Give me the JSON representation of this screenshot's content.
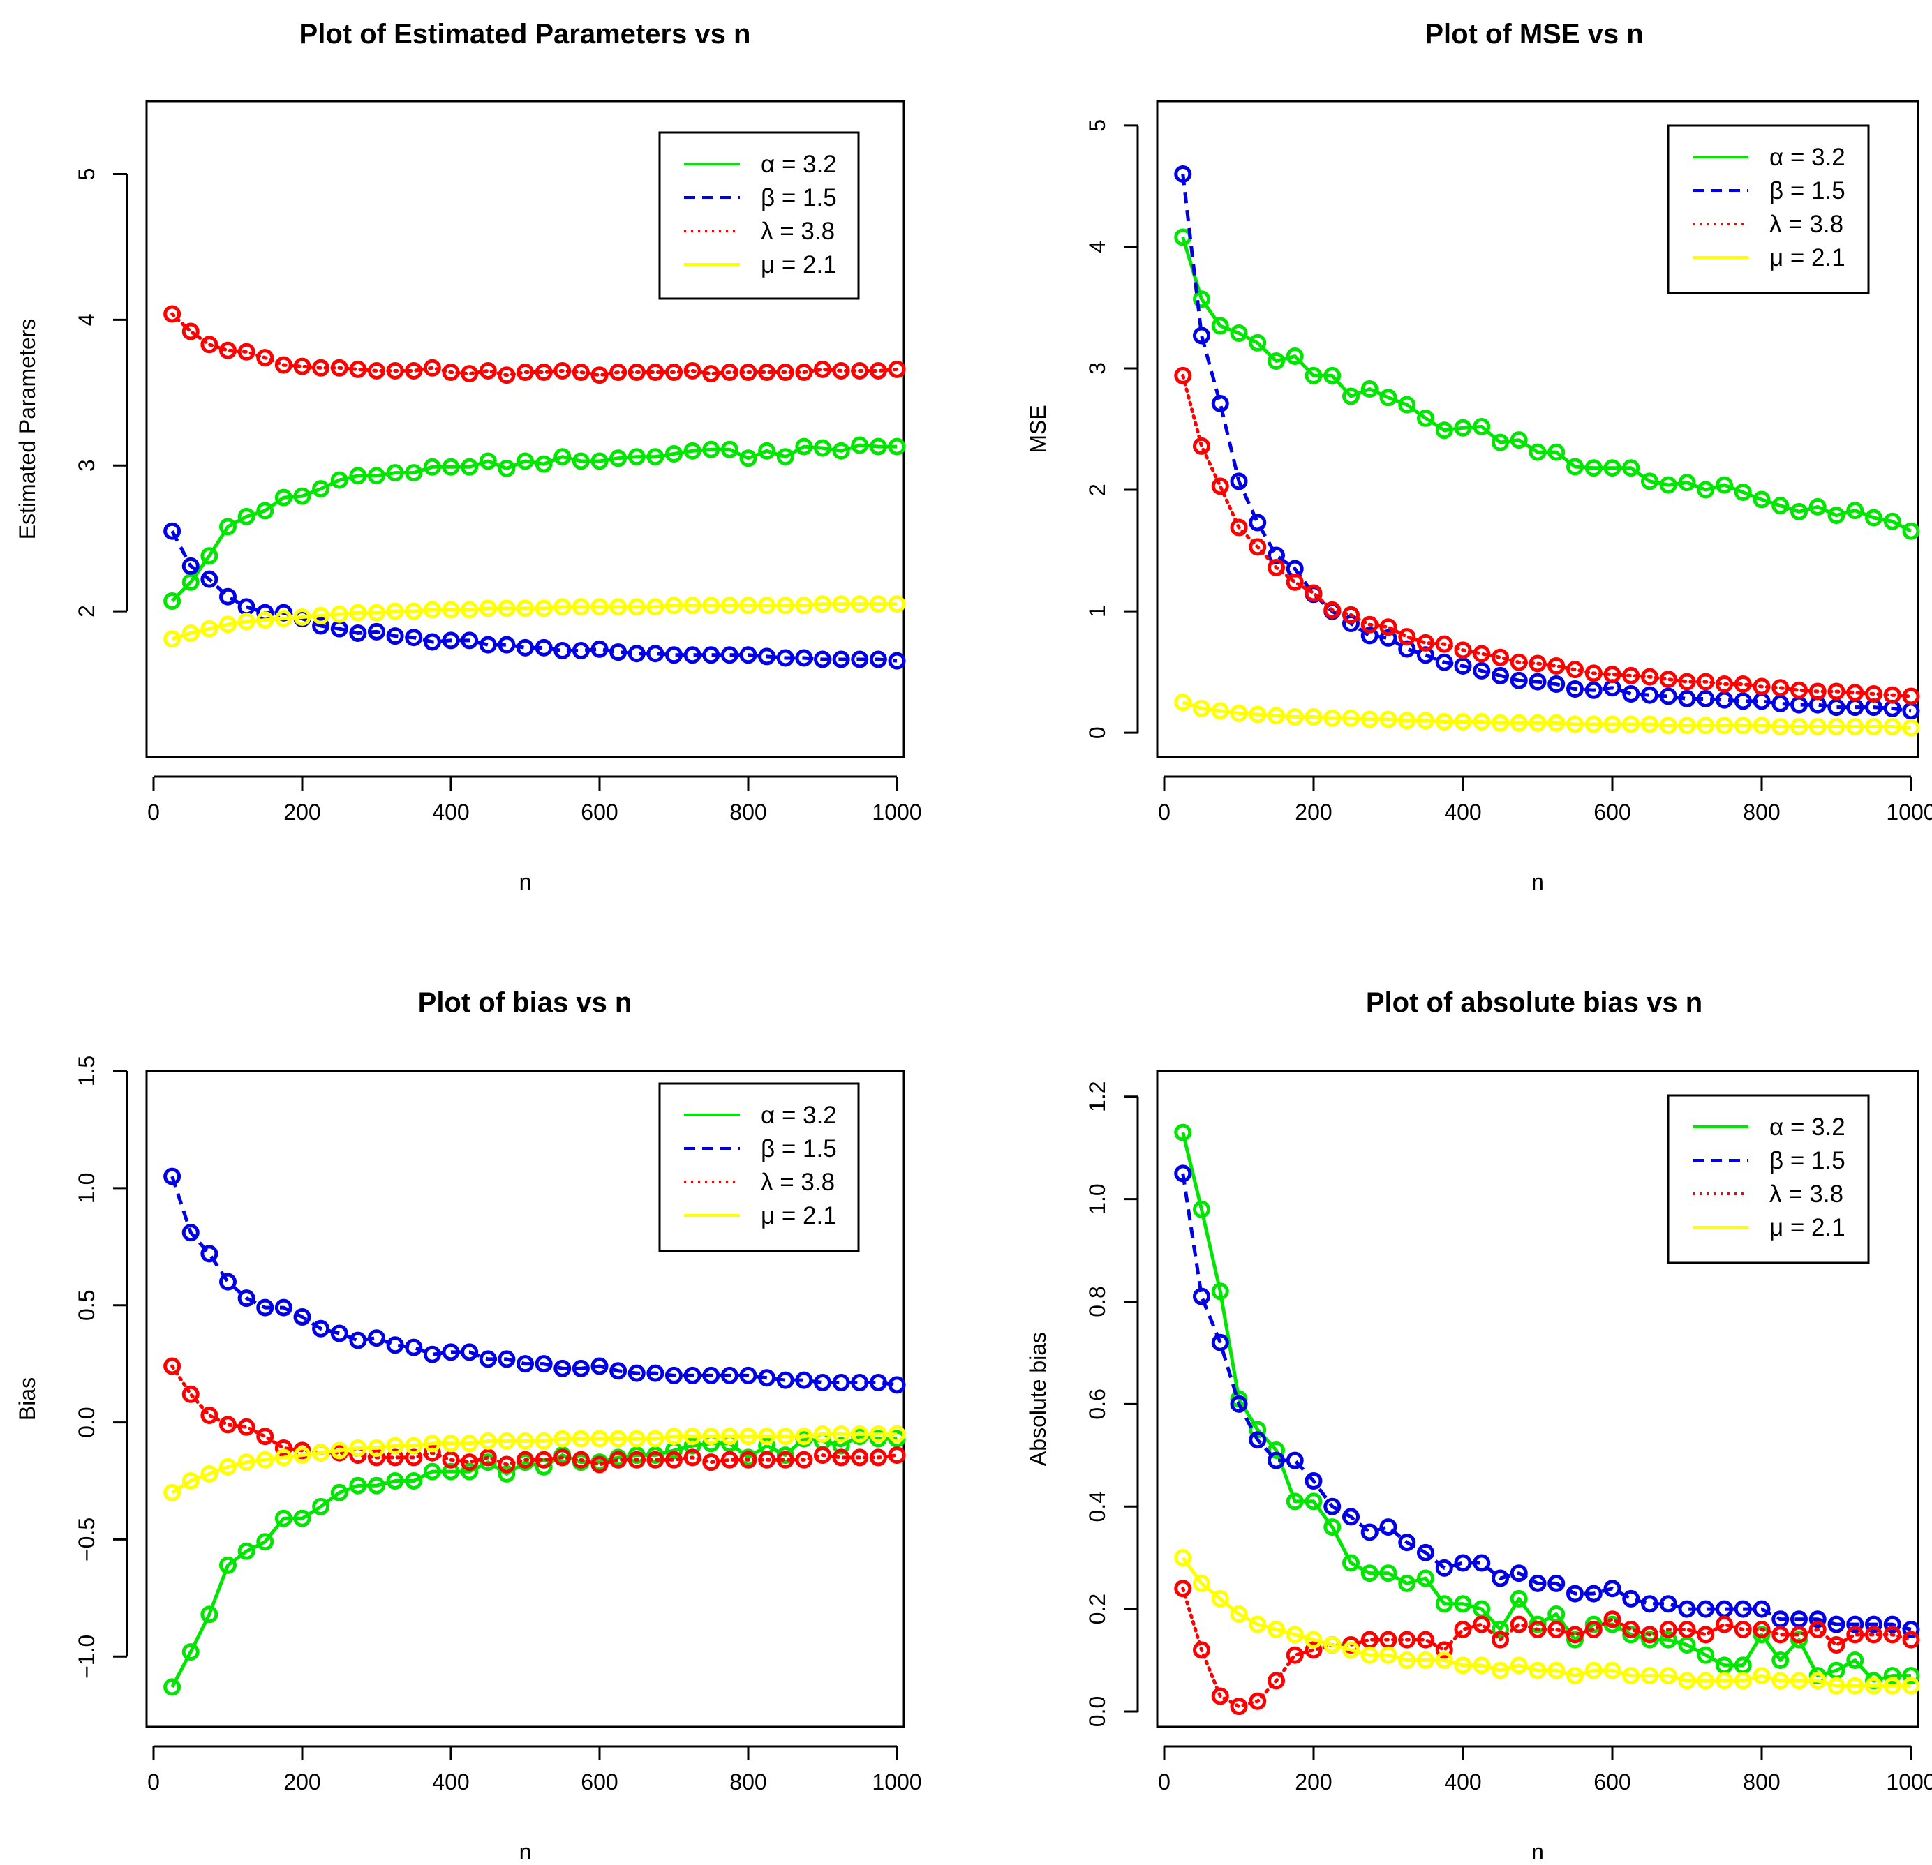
{
  "chart_data": [
    {
      "type": "line",
      "title": "Plot of Estimated Parameters vs n",
      "xlabel": "n",
      "ylabel": "Estimated Parameters",
      "xlim": [
        0,
        1000
      ],
      "ylim": [
        1,
        5.5
      ],
      "xticks": [
        0,
        200,
        400,
        600,
        800,
        1000
      ],
      "yticks": [
        2,
        3,
        4,
        5
      ],
      "x": [
        25,
        50,
        75,
        100,
        125,
        150,
        175,
        200,
        225,
        250,
        275,
        300,
        325,
        350,
        375,
        400,
        425,
        450,
        475,
        500,
        525,
        550,
        575,
        600,
        625,
        650,
        675,
        700,
        725,
        750,
        775,
        800,
        825,
        850,
        875,
        900,
        925,
        950,
        975,
        1000
      ],
      "legend_position": "top-right",
      "series": [
        {
          "name": "α = 3.2",
          "color": "#00e600",
          "dash": "solid",
          "values": [
            2.07,
            2.2,
            2.38,
            2.58,
            2.65,
            2.69,
            2.78,
            2.79,
            2.84,
            2.9,
            2.93,
            2.93,
            2.95,
            2.95,
            2.99,
            2.99,
            2.99,
            3.03,
            2.98,
            3.03,
            3.01,
            3.06,
            3.03,
            3.03,
            3.05,
            3.06,
            3.06,
            3.08,
            3.1,
            3.11,
            3.11,
            3.05,
            3.1,
            3.06,
            3.13,
            3.12,
            3.1,
            3.14,
            3.13,
            3.13
          ]
        },
        {
          "name": "β = 1.5",
          "color": "#0000e6",
          "dash": "dashed",
          "values": [
            2.55,
            2.31,
            2.22,
            2.1,
            2.03,
            1.99,
            1.99,
            1.95,
            1.9,
            1.88,
            1.85,
            1.86,
            1.83,
            1.82,
            1.79,
            1.8,
            1.8,
            1.77,
            1.77,
            1.75,
            1.75,
            1.73,
            1.73,
            1.74,
            1.72,
            1.71,
            1.71,
            1.7,
            1.7,
            1.7,
            1.7,
            1.7,
            1.69,
            1.68,
            1.68,
            1.67,
            1.67,
            1.67,
            1.67,
            1.66
          ]
        },
        {
          "name": "λ = 3.8",
          "color": "#ff0000",
          "dash": "dotted",
          "values": [
            4.04,
            3.92,
            3.83,
            3.79,
            3.78,
            3.74,
            3.69,
            3.68,
            3.67,
            3.67,
            3.66,
            3.65,
            3.65,
            3.65,
            3.67,
            3.64,
            3.63,
            3.65,
            3.62,
            3.64,
            3.64,
            3.65,
            3.64,
            3.62,
            3.64,
            3.64,
            3.64,
            3.64,
            3.65,
            3.63,
            3.64,
            3.64,
            3.64,
            3.64,
            3.64,
            3.66,
            3.65,
            3.65,
            3.65,
            3.66
          ]
        },
        {
          "name": "μ = 2.1",
          "color": "#ffff00",
          "dash": "solid",
          "values": [
            1.81,
            1.85,
            1.88,
            1.91,
            1.93,
            1.94,
            1.95,
            1.96,
            1.97,
            1.98,
            1.99,
            1.99,
            2.0,
            2.0,
            2.01,
            2.01,
            2.01,
            2.02,
            2.02,
            2.02,
            2.02,
            2.03,
            2.03,
            2.03,
            2.03,
            2.03,
            2.03,
            2.04,
            2.04,
            2.04,
            2.04,
            2.04,
            2.04,
            2.04,
            2.04,
            2.05,
            2.05,
            2.05,
            2.05,
            2.05
          ]
        }
      ]
    },
    {
      "type": "line",
      "title": "Plot of MSE vs n",
      "xlabel": "n",
      "ylabel": "MSE",
      "xlim": [
        0,
        1000
      ],
      "ylim": [
        -0.2,
        5.2
      ],
      "xticks": [
        0,
        200,
        400,
        600,
        800,
        1000
      ],
      "yticks": [
        0,
        1,
        2,
        3,
        4,
        5
      ],
      "x": [
        25,
        50,
        75,
        100,
        125,
        150,
        175,
        200,
        225,
        250,
        275,
        300,
        325,
        350,
        375,
        400,
        425,
        450,
        475,
        500,
        525,
        550,
        575,
        600,
        625,
        650,
        675,
        700,
        725,
        750,
        775,
        800,
        825,
        850,
        875,
        900,
        925,
        950,
        975,
        1000
      ],
      "legend_position": "top-right",
      "series": [
        {
          "name": "α = 3.2",
          "color": "#00e600",
          "dash": "solid",
          "values": [
            4.08,
            3.57,
            3.35,
            3.29,
            3.21,
            3.06,
            3.1,
            2.94,
            2.94,
            2.77,
            2.83,
            2.76,
            2.7,
            2.59,
            2.49,
            2.51,
            2.52,
            2.39,
            2.41,
            2.31,
            2.31,
            2.19,
            2.18,
            2.18,
            2.18,
            2.07,
            2.04,
            2.06,
            2.0,
            2.04,
            1.98,
            1.92,
            1.87,
            1.82,
            1.86,
            1.79,
            1.83,
            1.77,
            1.74,
            1.66
          ]
        },
        {
          "name": "β = 1.5",
          "color": "#0000e6",
          "dash": "dashed",
          "values": [
            4.6,
            3.27,
            2.71,
            2.07,
            1.73,
            1.46,
            1.35,
            1.14,
            1.0,
            0.9,
            0.8,
            0.78,
            0.69,
            0.64,
            0.58,
            0.55,
            0.51,
            0.47,
            0.43,
            0.42,
            0.4,
            0.36,
            0.35,
            0.37,
            0.32,
            0.31,
            0.3,
            0.28,
            0.28,
            0.27,
            0.26,
            0.26,
            0.24,
            0.23,
            0.23,
            0.21,
            0.21,
            0.21,
            0.2,
            0.18
          ]
        },
        {
          "name": "λ = 3.8",
          "color": "#ff0000",
          "dash": "dotted",
          "values": [
            2.94,
            2.36,
            2.03,
            1.69,
            1.53,
            1.36,
            1.24,
            1.15,
            1.01,
            0.97,
            0.89,
            0.87,
            0.79,
            0.74,
            0.73,
            0.68,
            0.65,
            0.62,
            0.58,
            0.57,
            0.55,
            0.52,
            0.49,
            0.48,
            0.47,
            0.46,
            0.44,
            0.42,
            0.42,
            0.4,
            0.4,
            0.38,
            0.37,
            0.35,
            0.34,
            0.34,
            0.33,
            0.32,
            0.31,
            0.3
          ]
        },
        {
          "name": "μ = 2.1",
          "color": "#ffff00",
          "dash": "solid",
          "values": [
            0.25,
            0.2,
            0.18,
            0.16,
            0.15,
            0.14,
            0.13,
            0.13,
            0.12,
            0.12,
            0.11,
            0.11,
            0.1,
            0.1,
            0.09,
            0.09,
            0.09,
            0.08,
            0.08,
            0.08,
            0.08,
            0.07,
            0.07,
            0.07,
            0.07,
            0.07,
            0.06,
            0.06,
            0.06,
            0.06,
            0.06,
            0.06,
            0.05,
            0.05,
            0.05,
            0.05,
            0.05,
            0.05,
            0.05,
            0.04
          ]
        }
      ]
    },
    {
      "type": "line",
      "title": "Plot of bias vs n",
      "xlabel": "n",
      "ylabel": "Bias",
      "xlim": [
        0,
        1000
      ],
      "ylim": [
        -1.3,
        1.5
      ],
      "xticks": [
        0,
        200,
        400,
        600,
        800,
        1000
      ],
      "yticks": [
        -1.0,
        -0.5,
        0.0,
        0.5,
        1.0,
        1.5
      ],
      "ytick_labels": [
        "−1.0",
        "−0.5",
        "0.0",
        "0.5",
        "1.0",
        "1.5"
      ],
      "x": [
        25,
        50,
        75,
        100,
        125,
        150,
        175,
        200,
        225,
        250,
        275,
        300,
        325,
        350,
        375,
        400,
        425,
        450,
        475,
        500,
        525,
        550,
        575,
        600,
        625,
        650,
        675,
        700,
        725,
        750,
        775,
        800,
        825,
        850,
        875,
        900,
        925,
        950,
        975,
        1000
      ],
      "legend_position": "top-right",
      "series": [
        {
          "name": "α = 3.2",
          "color": "#00e600",
          "dash": "solid",
          "values": [
            -1.13,
            -0.98,
            -0.82,
            -0.61,
            -0.55,
            -0.51,
            -0.41,
            -0.41,
            -0.36,
            -0.3,
            -0.27,
            -0.27,
            -0.25,
            -0.25,
            -0.21,
            -0.21,
            -0.21,
            -0.17,
            -0.22,
            -0.17,
            -0.19,
            -0.14,
            -0.17,
            -0.17,
            -0.15,
            -0.14,
            -0.14,
            -0.12,
            -0.1,
            -0.09,
            -0.09,
            -0.15,
            -0.1,
            -0.14,
            -0.07,
            -0.08,
            -0.1,
            -0.06,
            -0.07,
            -0.07
          ]
        },
        {
          "name": "β = 1.5",
          "color": "#0000e6",
          "dash": "dashed",
          "values": [
            1.05,
            0.81,
            0.72,
            0.6,
            0.53,
            0.49,
            0.49,
            0.45,
            0.4,
            0.38,
            0.35,
            0.36,
            0.33,
            0.32,
            0.29,
            0.3,
            0.3,
            0.27,
            0.27,
            0.25,
            0.25,
            0.23,
            0.23,
            0.24,
            0.22,
            0.21,
            0.21,
            0.2,
            0.2,
            0.2,
            0.2,
            0.2,
            0.19,
            0.18,
            0.18,
            0.17,
            0.17,
            0.17,
            0.17,
            0.16
          ]
        },
        {
          "name": "λ = 3.8",
          "color": "#ff0000",
          "dash": "dotted",
          "values": [
            0.24,
            0.12,
            0.03,
            -0.01,
            -0.02,
            -0.06,
            -0.11,
            -0.12,
            -0.13,
            -0.13,
            -0.14,
            -0.15,
            -0.15,
            -0.15,
            -0.13,
            -0.16,
            -0.17,
            -0.15,
            -0.18,
            -0.16,
            -0.16,
            -0.15,
            -0.16,
            -0.18,
            -0.16,
            -0.16,
            -0.16,
            -0.16,
            -0.15,
            -0.17,
            -0.16,
            -0.16,
            -0.16,
            -0.16,
            -0.16,
            -0.14,
            -0.15,
            -0.15,
            -0.15,
            -0.14
          ]
        },
        {
          "name": "μ = 2.1",
          "color": "#ffff00",
          "dash": "solid",
          "values": [
            -0.3,
            -0.25,
            -0.22,
            -0.19,
            -0.17,
            -0.16,
            -0.15,
            -0.14,
            -0.13,
            -0.12,
            -0.11,
            -0.11,
            -0.1,
            -0.1,
            -0.09,
            -0.09,
            -0.09,
            -0.08,
            -0.08,
            -0.08,
            -0.08,
            -0.07,
            -0.07,
            -0.07,
            -0.07,
            -0.07,
            -0.07,
            -0.06,
            -0.06,
            -0.06,
            -0.06,
            -0.06,
            -0.06,
            -0.06,
            -0.06,
            -0.05,
            -0.05,
            -0.05,
            -0.05,
            -0.05
          ]
        }
      ]
    },
    {
      "type": "line",
      "title": "Plot of absolute bias vs n",
      "xlabel": "n",
      "ylabel": "Absolute bias",
      "xlim": [
        0,
        1000
      ],
      "ylim": [
        -0.03,
        1.25
      ],
      "xticks": [
        0,
        200,
        400,
        600,
        800,
        1000
      ],
      "yticks": [
        0.0,
        0.2,
        0.4,
        0.6,
        0.8,
        1.0,
        1.2
      ],
      "ytick_labels": [
        "0.0",
        "0.2",
        "0.4",
        "0.6",
        "0.8",
        "1.0",
        "1.2"
      ],
      "x": [
        25,
        50,
        75,
        100,
        125,
        150,
        175,
        200,
        225,
        250,
        275,
        300,
        325,
        350,
        375,
        400,
        425,
        450,
        475,
        500,
        525,
        550,
        575,
        600,
        625,
        650,
        675,
        700,
        725,
        750,
        775,
        800,
        825,
        850,
        875,
        900,
        925,
        950,
        975,
        1000
      ],
      "legend_position": "top-right",
      "series": [
        {
          "name": "α = 3.2",
          "color": "#00e600",
          "dash": "solid",
          "values": [
            1.13,
            0.98,
            0.82,
            0.61,
            0.55,
            0.51,
            0.41,
            0.41,
            0.36,
            0.29,
            0.27,
            0.27,
            0.25,
            0.26,
            0.21,
            0.21,
            0.2,
            0.16,
            0.22,
            0.17,
            0.19,
            0.14,
            0.17,
            0.17,
            0.15,
            0.14,
            0.14,
            0.13,
            0.11,
            0.09,
            0.09,
            0.15,
            0.1,
            0.14,
            0.07,
            0.08,
            0.1,
            0.06,
            0.07,
            0.07
          ]
        },
        {
          "name": "β = 1.5",
          "color": "#0000e6",
          "dash": "dashed",
          "values": [
            1.05,
            0.81,
            0.72,
            0.6,
            0.53,
            0.49,
            0.49,
            0.45,
            0.4,
            0.38,
            0.35,
            0.36,
            0.33,
            0.31,
            0.28,
            0.29,
            0.29,
            0.26,
            0.27,
            0.25,
            0.25,
            0.23,
            0.23,
            0.24,
            0.22,
            0.21,
            0.21,
            0.2,
            0.2,
            0.2,
            0.2,
            0.2,
            0.18,
            0.18,
            0.18,
            0.17,
            0.17,
            0.17,
            0.17,
            0.16
          ]
        },
        {
          "name": "λ = 3.8",
          "color": "#ff0000",
          "dash": "dotted",
          "values": [
            0.24,
            0.12,
            0.03,
            0.01,
            0.02,
            0.06,
            0.11,
            0.12,
            0.13,
            0.13,
            0.14,
            0.14,
            0.14,
            0.14,
            0.12,
            0.16,
            0.17,
            0.14,
            0.17,
            0.16,
            0.16,
            0.15,
            0.16,
            0.18,
            0.16,
            0.15,
            0.16,
            0.16,
            0.15,
            0.17,
            0.16,
            0.16,
            0.15,
            0.15,
            0.16,
            0.13,
            0.15,
            0.15,
            0.15,
            0.14
          ]
        },
        {
          "name": "μ = 2.1",
          "color": "#ffff00",
          "dash": "solid",
          "values": [
            0.3,
            0.25,
            0.22,
            0.19,
            0.17,
            0.16,
            0.15,
            0.14,
            0.13,
            0.12,
            0.11,
            0.11,
            0.1,
            0.1,
            0.1,
            0.09,
            0.09,
            0.08,
            0.09,
            0.08,
            0.08,
            0.07,
            0.08,
            0.08,
            0.07,
            0.07,
            0.07,
            0.06,
            0.06,
            0.06,
            0.06,
            0.07,
            0.06,
            0.06,
            0.06,
            0.05,
            0.05,
            0.05,
            0.05,
            0.05
          ]
        }
      ]
    }
  ]
}
